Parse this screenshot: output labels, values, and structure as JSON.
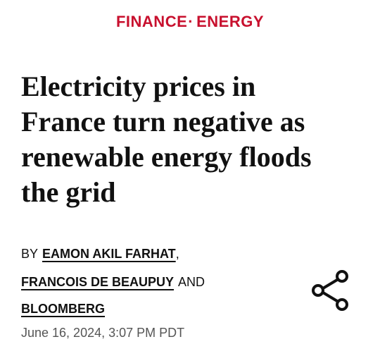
{
  "header": {
    "sections": [
      "FINANCE",
      "ENERGY"
    ],
    "separator": "·"
  },
  "headline": [
    "Electricity prices in",
    "France turn negative as",
    "renewable energy floods",
    "the grid"
  ],
  "byline": {
    "prefix": "BY",
    "authors": [
      "EAMON AKIL FARHAT",
      "FRANCOIS DE BEAUPUY",
      "BLOOMBERG"
    ],
    "comma": ",",
    "conjunction": "AND"
  },
  "date": "June 16, 2024, 3:07 PM PDT"
}
